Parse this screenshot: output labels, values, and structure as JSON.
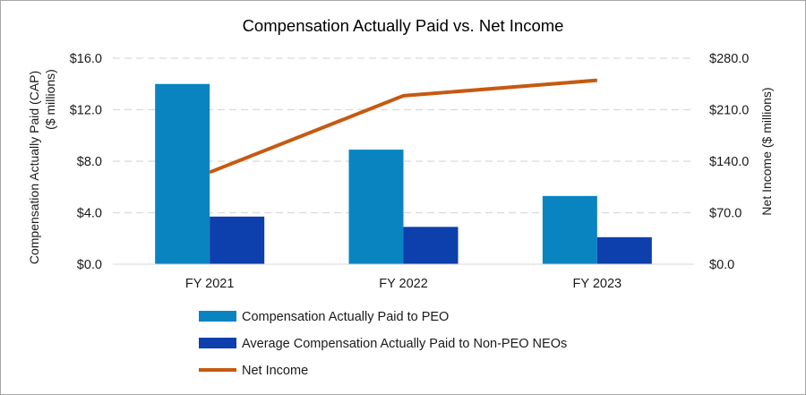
{
  "chart_data": {
    "type": "bar",
    "title": "Compensation  Actually  Paid vs. Net Income",
    "categories": [
      "FY 2021",
      "FY 2022",
      "FY 2023"
    ],
    "series": [
      {
        "name": "Compensation Actually Paid to PEO",
        "type": "bar",
        "axis": "left",
        "color": "#0a84c1",
        "values": [
          14.0,
          8.9,
          5.3
        ]
      },
      {
        "name": "Average Compensation Actually Paid to Non-PEO NEOs",
        "type": "bar",
        "axis": "left",
        "color": "#0d3fad",
        "values": [
          3.7,
          2.9,
          2.1
        ]
      },
      {
        "name": "Net Income",
        "type": "line",
        "axis": "right",
        "color": "#c55a11",
        "values": [
          125.0,
          229.0,
          250.0
        ]
      }
    ],
    "y_left": {
      "label_line1": "Compensation  Actually  Paid (CAP)",
      "label_line2": "($ millions)",
      "ylim": [
        0,
        16
      ],
      "ticks": [
        0,
        4,
        8,
        12,
        16
      ],
      "tick_labels": [
        "$0.0",
        "$4.0",
        "$8.0",
        "$12.0",
        "$16.0"
      ]
    },
    "y_right": {
      "label": "Net Income ($ millions)",
      "ylim": [
        0,
        280
      ],
      "ticks": [
        0,
        70,
        140,
        210,
        280
      ],
      "tick_labels": [
        "$0.0",
        "$70.0",
        "$140.0",
        "$210.0",
        "$280.0"
      ]
    },
    "grid": true,
    "grid_color": "#d9d9d9",
    "legend_position": "bottom"
  }
}
